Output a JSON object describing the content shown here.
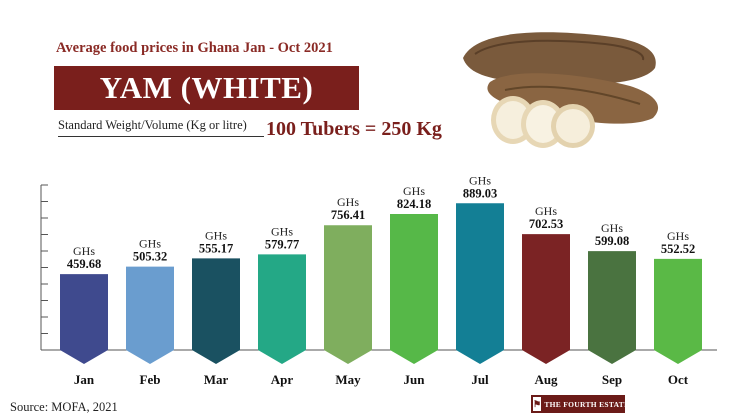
{
  "header": {
    "subtitle": "Average food prices in Ghana Jan - Oct 2021",
    "title": "YAM (WHITE)",
    "weight_label": "Standard Weight/Volume (Kg or litre)",
    "weight_value": "100 Tubers = 250 Kg"
  },
  "footer": {
    "source": "Source: MOFA, 2021",
    "brand": "THE FOURTH ESTATE"
  },
  "chart_data": {
    "type": "bar",
    "value_prefix": "GHs",
    "categories": [
      "Jan",
      "Feb",
      "Mar",
      "Apr",
      "May",
      "Jun",
      "Jul",
      "Aug",
      "Sep",
      "Oct"
    ],
    "values": [
      459.68,
      505.32,
      555.17,
      579.77,
      756.41,
      824.18,
      889.03,
      702.53,
      599.08,
      552.52
    ],
    "value_labels": [
      "459.68",
      "505.32",
      "555.17",
      "579.77",
      "756.41",
      "824.18",
      "889.03",
      "702.53",
      "599.08",
      "552.52"
    ],
    "colors": [
      "#3f4a8e",
      "#6a9dcf",
      "#1a5161",
      "#24a886",
      "#7fae5e",
      "#56b848",
      "#137f95",
      "#7b2324",
      "#4a7340",
      "#5ab946"
    ],
    "ylim": [
      0,
      1000
    ],
    "grid": false,
    "legend": "none"
  }
}
